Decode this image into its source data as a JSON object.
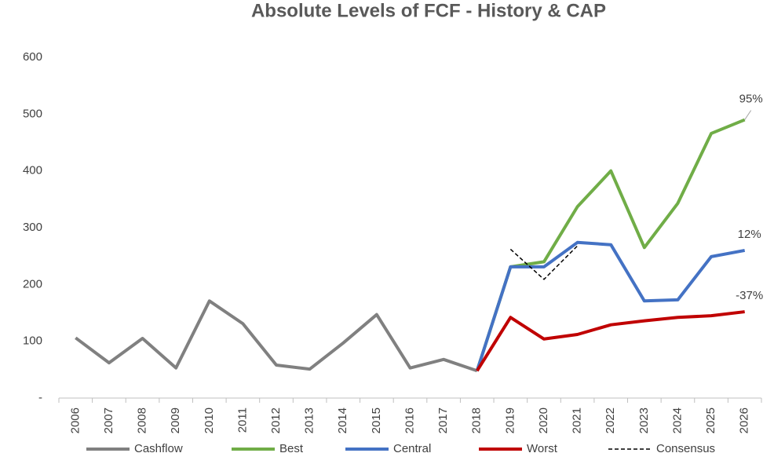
{
  "chart_data": {
    "type": "line",
    "title": "Absolute Levels of FCF - History & CAP",
    "categories": [
      "2006",
      "2007",
      "2008",
      "2009",
      "2010",
      "2011",
      "2012",
      "2013",
      "2014",
      "2015",
      "2016",
      "2017",
      "2018",
      "2019",
      "2020",
      "2021",
      "2022",
      "2023",
      "2024",
      "2025",
      "2026"
    ],
    "series": [
      {
        "name": "Cashflow",
        "color": "#808080",
        "dash": false,
        "values": [
          106,
          62,
          105,
          53,
          171,
          131,
          58,
          51,
          97,
          147,
          53,
          68,
          48,
          null,
          null,
          null,
          null,
          null,
          null,
          null,
          null
        ]
      },
      {
        "name": "Best",
        "color": "#70ad47",
        "dash": false,
        "end_label": "95%",
        "values": [
          null,
          null,
          null,
          null,
          null,
          null,
          null,
          null,
          null,
          null,
          null,
          null,
          48,
          231,
          240,
          337,
          400,
          265,
          343,
          466,
          490
        ]
      },
      {
        "name": "Central",
        "color": "#4472c4",
        "dash": false,
        "end_label": "12%",
        "values": [
          null,
          null,
          null,
          null,
          null,
          null,
          null,
          null,
          null,
          null,
          null,
          null,
          48,
          231,
          231,
          274,
          270,
          171,
          173,
          249,
          260
        ]
      },
      {
        "name": "Worst",
        "color": "#c00000",
        "dash": false,
        "end_label": "-37%",
        "values": [
          null,
          null,
          null,
          null,
          null,
          null,
          null,
          null,
          null,
          null,
          null,
          null,
          48,
          142,
          104,
          112,
          129,
          136,
          142,
          145,
          152
        ]
      },
      {
        "name": "Consensus",
        "color": "#000000",
        "dash": true,
        "values": [
          null,
          null,
          null,
          null,
          null,
          null,
          null,
          null,
          null,
          null,
          null,
          null,
          null,
          262,
          209,
          268,
          null,
          null,
          null,
          null,
          null
        ]
      }
    ],
    "ylim": [
      0,
      600
    ],
    "yticks": [
      {
        "value": 0,
        "label": "-"
      },
      100,
      200,
      300,
      400,
      500,
      600
    ],
    "grid": false,
    "legend": "bottom"
  }
}
